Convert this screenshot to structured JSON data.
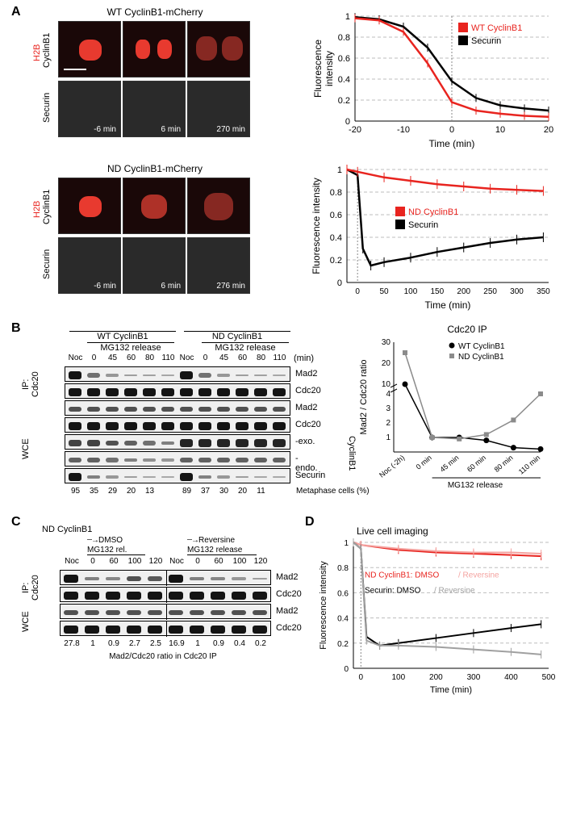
{
  "panels": {
    "A": "A",
    "B": "B",
    "C": "C",
    "D": "D"
  },
  "panelA": {
    "top_title": "WT CyclinB1-mCherry",
    "bot_title": "ND CyclinB1-mCherry",
    "side1a": "CyclinB1",
    "side1b": "H2B",
    "side2": "Securin",
    "times_top": [
      "-6 min",
      "6 min",
      "270 min"
    ],
    "times_bot": [
      "-6 min",
      "6 min",
      "276 min"
    ],
    "chart1": {
      "ylabel": "Fluorescence\nintensity",
      "xlabel": "Time (min)",
      "legend": {
        "red": "WT CyclinB1",
        "black": "Securin"
      },
      "ylim": [
        0,
        1
      ],
      "yticks": [
        0,
        0.2,
        0.4,
        0.6,
        0.8,
        1
      ],
      "xlim": [
        -20,
        20
      ],
      "xticks": [
        -20,
        -10,
        0,
        10,
        20
      ],
      "series_red": [
        [
          -20,
          0.98
        ],
        [
          -15,
          0.96
        ],
        [
          -10,
          0.85
        ],
        [
          -5,
          0.55
        ],
        [
          0,
          0.18
        ],
        [
          5,
          0.1
        ],
        [
          10,
          0.07
        ],
        [
          15,
          0.05
        ],
        [
          20,
          0.04
        ]
      ],
      "series_black": [
        [
          -20,
          0.99
        ],
        [
          -15,
          0.97
        ],
        [
          -10,
          0.9
        ],
        [
          -5,
          0.7
        ],
        [
          0,
          0.38
        ],
        [
          5,
          0.22
        ],
        [
          10,
          0.15
        ],
        [
          15,
          0.12
        ],
        [
          20,
          0.1
        ]
      ],
      "colors": {
        "red": "#e8241f",
        "black": "#000000",
        "grid": "#bdbdbd",
        "bg": "#ffffff"
      }
    },
    "chart2": {
      "ylabel": "Fluorescence intensity",
      "xlabel": "Time (min)",
      "legend": {
        "red": "ND CyclinB1",
        "black": "Securin"
      },
      "ylim": [
        0,
        1
      ],
      "yticks": [
        0,
        0.2,
        0.4,
        0.6,
        0.8,
        1
      ],
      "xlim": [
        -20,
        360
      ],
      "xticks": [
        0,
        50,
        100,
        150,
        200,
        250,
        300,
        350
      ],
      "series_red": [
        [
          -20,
          1.0
        ],
        [
          0,
          0.98
        ],
        [
          50,
          0.93
        ],
        [
          100,
          0.9
        ],
        [
          150,
          0.87
        ],
        [
          200,
          0.85
        ],
        [
          250,
          0.83
        ],
        [
          300,
          0.82
        ],
        [
          350,
          0.81
        ]
      ],
      "series_black": [
        [
          -20,
          1.0
        ],
        [
          0,
          0.95
        ],
        [
          10,
          0.3
        ],
        [
          25,
          0.15
        ],
        [
          50,
          0.18
        ],
        [
          100,
          0.22
        ],
        [
          150,
          0.27
        ],
        [
          200,
          0.31
        ],
        [
          250,
          0.35
        ],
        [
          300,
          0.38
        ],
        [
          350,
          0.4
        ]
      ],
      "colors": {
        "red": "#e8241f",
        "black": "#000000",
        "grid": "#bdbdbd"
      }
    }
  },
  "panelB": {
    "group1": "WT CyclinB1",
    "group2": "ND CyclinB1",
    "subhdr": "MG132 release",
    "lanes": [
      "Noc",
      "0",
      "45",
      "60",
      "80",
      "110",
      "Noc",
      "0",
      "45",
      "60",
      "80",
      "110"
    ],
    "unit": "(min)",
    "row_labels": [
      "Mad2",
      "Cdc20",
      "Mad2",
      "Cdc20",
      "-exo.",
      "-endo.",
      "Securin"
    ],
    "side_ip": "IP: Cdc20",
    "side_wce": "WCE",
    "brace": "CyclinB1",
    "metaphase_nums": [
      "95",
      "35",
      "29",
      "20",
      "13",
      "",
      "89",
      "37",
      "30",
      "20",
      "11"
    ],
    "metaphase_lbl": "Metaphase cells (%)",
    "chart": {
      "title": "Cdc20 IP",
      "ylabel": "Mad2 / Cdc20 ratio",
      "legend": {
        "black": "WT CyclinB1",
        "gray": "ND CyclinB1"
      },
      "yticks": [
        1,
        2,
        3,
        4,
        10,
        20,
        30
      ],
      "xticks": [
        "Noc (-2h)",
        "0 min",
        "45 min",
        "60 min",
        "80 min",
        "110 min"
      ],
      "xsub": "MG132 release",
      "series_black": [
        [
          0,
          10
        ],
        [
          1,
          1
        ],
        [
          2,
          1
        ],
        [
          3,
          0.8
        ],
        [
          4,
          0.3
        ],
        [
          5,
          0.2
        ]
      ],
      "series_gray": [
        [
          0,
          25
        ],
        [
          1,
          1
        ],
        [
          2,
          0.9
        ],
        [
          3,
          1.2
        ],
        [
          4,
          2.2
        ],
        [
          5,
          4
        ]
      ],
      "colors": {
        "black": "#000000",
        "gray": "#8b8b8b",
        "grid": "#bdbdbd"
      },
      "marker_black": "circle",
      "marker_gray": "square"
    }
  },
  "panelC": {
    "title": "ND CyclinB1",
    "arrow1": "DMSO",
    "arrow2": "Reversine",
    "sub": "MG132 rel.",
    "sub2": "MG132 release",
    "lanes": [
      "Noc",
      "0",
      "60",
      "100",
      "120",
      "Noc",
      "0",
      "60",
      "100",
      "120"
    ],
    "row_labels": [
      "Mad2",
      "Cdc20",
      "Mad2",
      "Cdc20"
    ],
    "side_ip": "IP: Cdc20",
    "side_wce": "WCE",
    "ratios": [
      "27.8",
      "1",
      "0.9",
      "2.7",
      "2.5",
      "16.9",
      "1",
      "0.9",
      "0.4",
      "0.2"
    ],
    "ratio_lbl": "Mad2/Cdc20 ratio in Cdc20 IP"
  },
  "panelD": {
    "title": "Live cell imaging",
    "ylabel": "Fluorescence intensity",
    "xlabel": "Time (min)",
    "ylim": [
      0,
      1
    ],
    "yticks": [
      0,
      0.2,
      0.4,
      0.6,
      0.8,
      1
    ],
    "xlim": [
      -20,
      500
    ],
    "xticks": [
      0,
      100,
      200,
      300,
      400,
      500
    ],
    "legend_l1a": "ND CyclinB1: DMSO",
    "legend_l1b": "/ Reversine",
    "legend_l2a": "Securin: DMSO",
    "legend_l2b": "/ Reversine",
    "series": {
      "red": [
        [
          -20,
          1.0
        ],
        [
          0,
          0.98
        ],
        [
          100,
          0.94
        ],
        [
          200,
          0.92
        ],
        [
          300,
          0.91
        ],
        [
          400,
          0.9
        ],
        [
          480,
          0.89
        ]
      ],
      "pink": [
        [
          -20,
          1.0
        ],
        [
          0,
          0.98
        ],
        [
          100,
          0.95
        ],
        [
          200,
          0.93
        ],
        [
          300,
          0.92
        ],
        [
          400,
          0.92
        ],
        [
          480,
          0.91
        ]
      ],
      "black": [
        [
          -20,
          1.0
        ],
        [
          0,
          0.95
        ],
        [
          15,
          0.25
        ],
        [
          50,
          0.18
        ],
        [
          100,
          0.2
        ],
        [
          200,
          0.24
        ],
        [
          300,
          0.28
        ],
        [
          400,
          0.32
        ],
        [
          480,
          0.35
        ]
      ],
      "gray": [
        [
          -20,
          1.0
        ],
        [
          0,
          0.95
        ],
        [
          15,
          0.22
        ],
        [
          50,
          0.18
        ],
        [
          100,
          0.18
        ],
        [
          200,
          0.17
        ],
        [
          300,
          0.15
        ],
        [
          400,
          0.13
        ],
        [
          480,
          0.11
        ]
      ]
    },
    "colors": {
      "red": "#e8241f",
      "pink": "#f4a3a0",
      "black": "#000000",
      "gray": "#a0a0a0",
      "grid": "#bdbdbd"
    }
  }
}
